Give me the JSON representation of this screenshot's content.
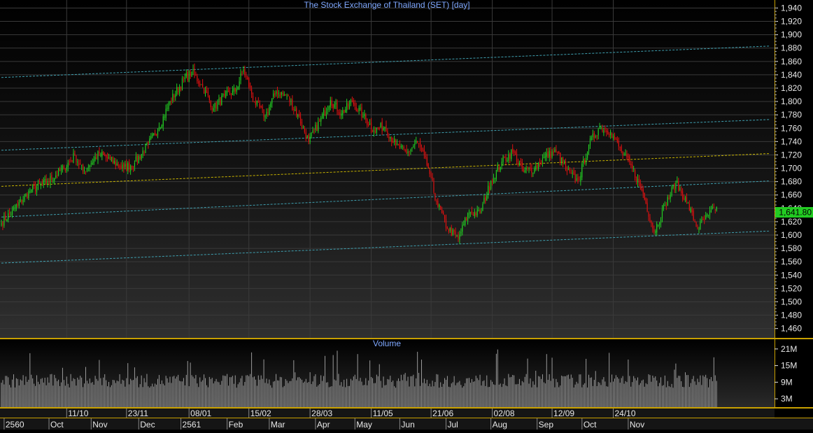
{
  "colors": {
    "background": "#000000",
    "panel_top": "#2a2a2a",
    "gridline": "#3a3a3a",
    "divider": "#c8a000",
    "title_text": "#7fa8ff",
    "axis_text": "#e8e8e8",
    "up_candle": "#22cc22",
    "down_candle": "#dd1111",
    "volume_bar": "#9a9a9a",
    "channel_line": "#3fa0b0",
    "mid_line": "#c8b400",
    "last_price_bg": "#22cc22",
    "date_strip_bg": "#151515"
  },
  "chart_data": [
    {
      "type": "candlestick",
      "title": "The Stock Exchange of Thailand (SET) [day]",
      "y_ticks": [
        1460,
        1480,
        1500,
        1520,
        1540,
        1560,
        1580,
        1600,
        1620,
        1640,
        1660,
        1680,
        1700,
        1720,
        1740,
        1760,
        1780,
        1800,
        1820,
        1840,
        1860,
        1880,
        1900,
        1920,
        1940
      ],
      "y_tick_labels": [
        "1,460",
        "1,480",
        "1,500",
        "1,520",
        "1,540",
        "1,560",
        "1,580",
        "1,600",
        "1,620",
        "1,640",
        "1,660",
        "1,680",
        "1,700",
        "1,720",
        "1,740",
        "1,760",
        "1,780",
        "1,800",
        "1,820",
        "1,840",
        "1,860",
        "1,880",
        "1,900",
        "1,920",
        "1,940"
      ],
      "ylim": [
        1446,
        1952
      ],
      "grid": true,
      "last_price": 1641.8,
      "last_price_label": "1,641.80",
      "close_series": [
        {
          "index": 0,
          "close": 1618
        },
        {
          "index": 12,
          "close": 1645
        },
        {
          "index": 22,
          "close": 1668
        },
        {
          "index": 34,
          "close": 1680
        },
        {
          "index": 46,
          "close": 1700
        },
        {
          "index": 54,
          "close": 1720
        },
        {
          "index": 60,
          "close": 1695
        },
        {
          "index": 72,
          "close": 1722
        },
        {
          "index": 80,
          "close": 1712
        },
        {
          "index": 90,
          "close": 1700
        },
        {
          "index": 98,
          "close": 1708
        },
        {
          "index": 108,
          "close": 1736
        },
        {
          "index": 116,
          "close": 1762
        },
        {
          "index": 124,
          "close": 1800
        },
        {
          "index": 134,
          "close": 1832
        },
        {
          "index": 140,
          "close": 1845
        },
        {
          "index": 148,
          "close": 1822
        },
        {
          "index": 156,
          "close": 1790
        },
        {
          "index": 164,
          "close": 1808
        },
        {
          "index": 172,
          "close": 1815
        },
        {
          "index": 178,
          "close": 1848
        },
        {
          "index": 186,
          "close": 1800
        },
        {
          "index": 194,
          "close": 1778
        },
        {
          "index": 202,
          "close": 1815
        },
        {
          "index": 210,
          "close": 1808
        },
        {
          "index": 218,
          "close": 1780
        },
        {
          "index": 226,
          "close": 1740
        },
        {
          "index": 234,
          "close": 1770
        },
        {
          "index": 242,
          "close": 1802
        },
        {
          "index": 250,
          "close": 1782
        },
        {
          "index": 258,
          "close": 1800
        },
        {
          "index": 266,
          "close": 1778
        },
        {
          "index": 274,
          "close": 1758
        },
        {
          "index": 282,
          "close": 1762
        },
        {
          "index": 290,
          "close": 1735
        },
        {
          "index": 298,
          "close": 1722
        },
        {
          "index": 306,
          "close": 1740
        },
        {
          "index": 314,
          "close": 1700
        },
        {
          "index": 320,
          "close": 1650
        },
        {
          "index": 328,
          "close": 1610
        },
        {
          "index": 336,
          "close": 1595
        },
        {
          "index": 344,
          "close": 1635
        },
        {
          "index": 352,
          "close": 1632
        },
        {
          "index": 360,
          "close": 1680
        },
        {
          "index": 368,
          "close": 1710
        },
        {
          "index": 376,
          "close": 1725
        },
        {
          "index": 384,
          "close": 1695
        },
        {
          "index": 392,
          "close": 1700
        },
        {
          "index": 400,
          "close": 1718
        },
        {
          "index": 408,
          "close": 1725
        },
        {
          "index": 416,
          "close": 1695
        },
        {
          "index": 424,
          "close": 1680
        },
        {
          "index": 432,
          "close": 1735
        },
        {
          "index": 440,
          "close": 1762
        },
        {
          "index": 448,
          "close": 1755
        },
        {
          "index": 456,
          "close": 1725
        },
        {
          "index": 464,
          "close": 1700
        },
        {
          "index": 472,
          "close": 1662
        },
        {
          "index": 480,
          "close": 1605
        },
        {
          "index": 488,
          "close": 1645
        },
        {
          "index": 496,
          "close": 1678
        },
        {
          "index": 504,
          "close": 1650
        },
        {
          "index": 512,
          "close": 1610
        },
        {
          "index": 520,
          "close": 1630
        },
        {
          "index": 526,
          "close": 1642
        }
      ],
      "trend_lines": [
        {
          "style": "channel",
          "start": {
            "index": 0,
            "value": 1836
          },
          "end": {
            "index": 565,
            "value": 1883
          }
        },
        {
          "style": "channel",
          "start": {
            "index": 0,
            "value": 1727
          },
          "end": {
            "index": 565,
            "value": 1773
          }
        },
        {
          "style": "channel",
          "start": {
            "index": 0,
            "value": 1627
          },
          "end": {
            "index": 565,
            "value": 1681
          }
        },
        {
          "style": "channel",
          "start": {
            "index": 0,
            "value": 1558
          },
          "end": {
            "index": 565,
            "value": 1606
          }
        },
        {
          "style": "mid",
          "start": {
            "index": 0,
            "value": 1673
          },
          "end": {
            "index": 565,
            "value": 1722
          }
        }
      ]
    },
    {
      "type": "bar",
      "title": "Volume",
      "y_ticks": [
        3,
        9,
        15,
        21
      ],
      "y_tick_labels": [
        "3M",
        "9M",
        "15M",
        "21M"
      ],
      "ylim": [
        0,
        24.5
      ],
      "units": "M",
      "volume_range": [
        4,
        21
      ]
    }
  ],
  "x_axis": {
    "upper_labels": [
      {
        "label": "11/10",
        "index": 48
      },
      {
        "label": "23/11",
        "index": 92
      },
      {
        "label": "08/01",
        "index": 138
      },
      {
        "label": "15/02",
        "index": 182
      },
      {
        "label": "28/03",
        "index": 227
      },
      {
        "label": "11/05",
        "index": 272
      },
      {
        "label": "21/06",
        "index": 316
      },
      {
        "label": "02/08",
        "index": 361
      },
      {
        "label": "12/09",
        "index": 405
      },
      {
        "label": "24/10",
        "index": 450
      }
    ],
    "lower_labels": [
      {
        "label": "2560",
        "index": 2
      },
      {
        "label": "Oct",
        "index": 35
      },
      {
        "label": "Nov",
        "index": 66
      },
      {
        "label": "Dec",
        "index": 101
      },
      {
        "label": "2561",
        "index": 132
      },
      {
        "label": "Feb",
        "index": 166
      },
      {
        "label": "Mar",
        "index": 197
      },
      {
        "label": "Apr",
        "index": 231
      },
      {
        "label": "May",
        "index": 260
      },
      {
        "label": "Jun",
        "index": 293
      },
      {
        "label": "Jul",
        "index": 327
      },
      {
        "label": "Aug",
        "index": 360
      },
      {
        "label": "Sep",
        "index": 394
      },
      {
        "label": "Oct",
        "index": 427
      },
      {
        "label": "Nov",
        "index": 461
      }
    ]
  }
}
